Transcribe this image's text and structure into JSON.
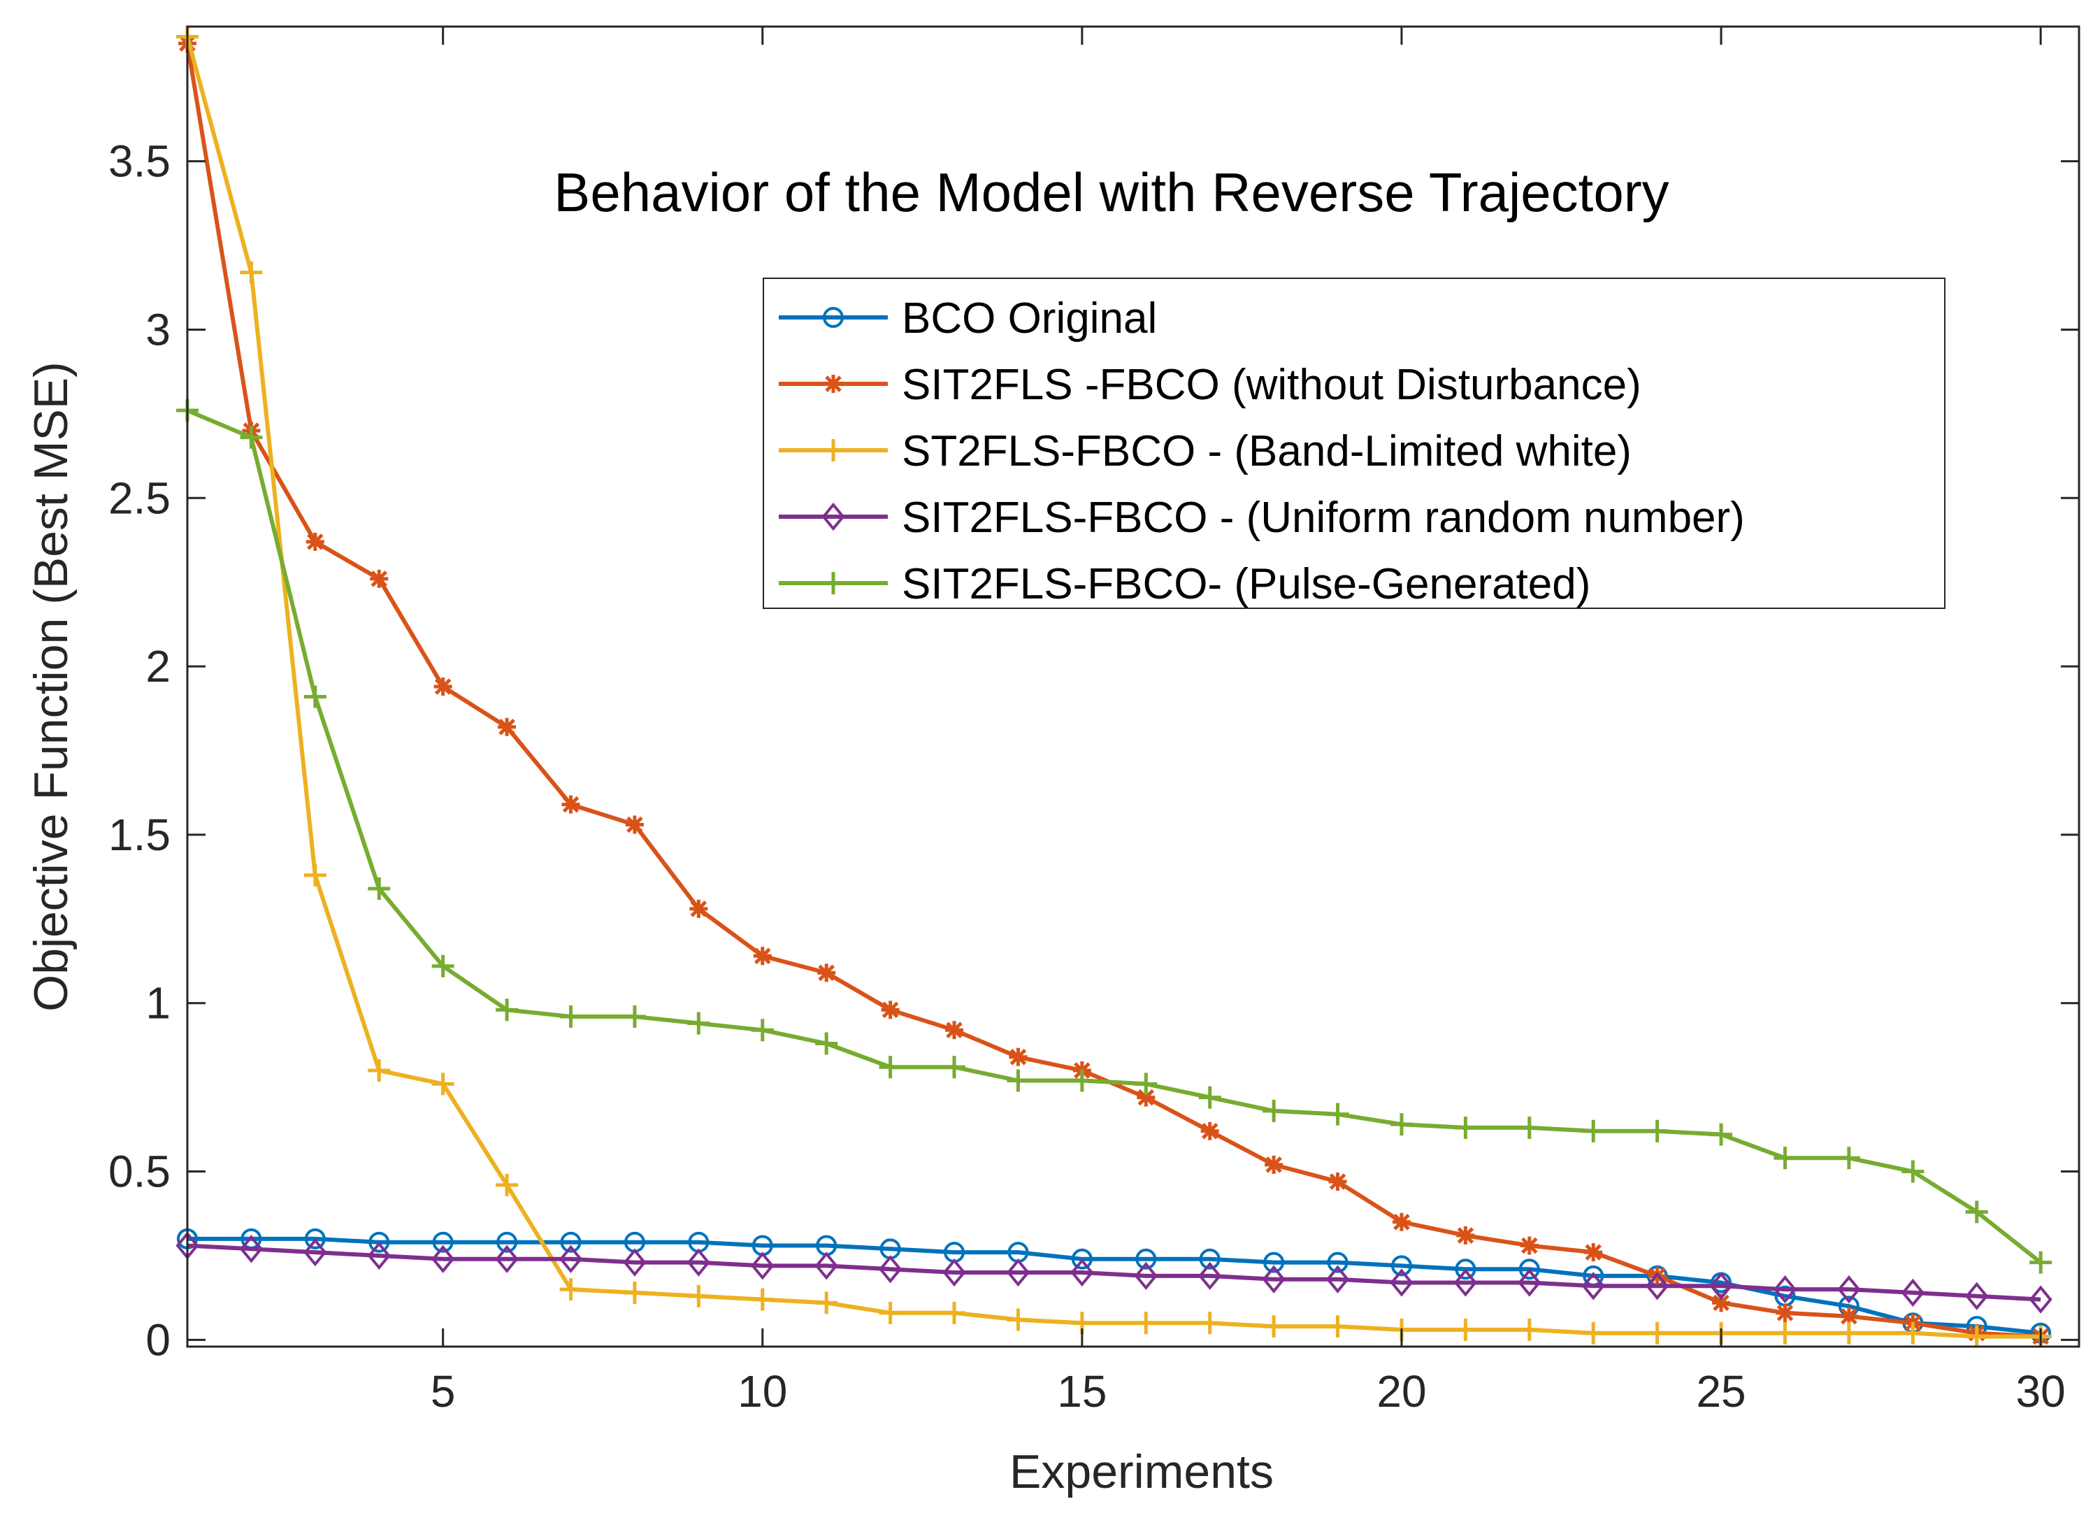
{
  "chart_data": {
    "type": "line",
    "title": "Behavior of the Model with Reverse Trajectory",
    "xlabel": "Experiments",
    "ylabel": "Objective Function (Best MSE)",
    "xlim": [
      1,
      30.6
    ],
    "ylim": [
      -0.02,
      3.9
    ],
    "xticks": [
      5,
      10,
      15,
      20,
      25,
      30
    ],
    "yticks": [
      0,
      0.5,
      1,
      1.5,
      2,
      2.5,
      3,
      3.5
    ],
    "ytick_labels": [
      "0",
      "0.5",
      "1",
      "1.5",
      "2",
      "2.5",
      "3",
      "3.5"
    ],
    "grid": false,
    "legend_position": "top-right",
    "x": [
      1,
      2,
      3,
      4,
      5,
      6,
      7,
      8,
      9,
      10,
      11,
      12,
      13,
      14,
      15,
      16,
      17,
      18,
      19,
      20,
      21,
      22,
      23,
      24,
      25,
      26,
      27,
      28,
      29,
      30
    ],
    "series": [
      {
        "name": "BCO Original",
        "color": "#0072BD",
        "marker": "circle",
        "values": [
          0.3,
          0.3,
          0.3,
          0.29,
          0.29,
          0.29,
          0.29,
          0.29,
          0.29,
          0.28,
          0.28,
          0.27,
          0.26,
          0.26,
          0.24,
          0.24,
          0.24,
          0.23,
          0.23,
          0.22,
          0.21,
          0.21,
          0.19,
          0.19,
          0.17,
          0.13,
          0.1,
          0.05,
          0.04,
          0.02
        ]
      },
      {
        "name": "SIT2FLS -FBCO (without Disturbance)",
        "color": "#D95319",
        "marker": "asterisk",
        "values": [
          3.85,
          2.7,
          2.37,
          2.26,
          1.94,
          1.82,
          1.59,
          1.53,
          1.28,
          1.14,
          1.09,
          0.98,
          0.92,
          0.84,
          0.8,
          0.72,
          0.62,
          0.52,
          0.47,
          0.35,
          0.31,
          0.28,
          0.26,
          0.19,
          0.11,
          0.08,
          0.07,
          0.05,
          0.02,
          0.01
        ]
      },
      {
        "name": "ST2FLS-FBCO - (Band-Limited white)",
        "color": "#EDB120",
        "marker": "plus",
        "values": [
          3.87,
          3.17,
          1.38,
          0.8,
          0.76,
          0.46,
          0.15,
          0.14,
          0.13,
          0.12,
          0.11,
          0.08,
          0.08,
          0.06,
          0.05,
          0.05,
          0.05,
          0.04,
          0.04,
          0.03,
          0.03,
          0.03,
          0.02,
          0.02,
          0.02,
          0.02,
          0.02,
          0.02,
          0.01,
          0.01
        ]
      },
      {
        "name": "SIT2FLS-FBCO - (Uniform random number)",
        "color": "#7E2F8E",
        "marker": "diamond",
        "values": [
          0.28,
          0.27,
          0.26,
          0.25,
          0.24,
          0.24,
          0.24,
          0.23,
          0.23,
          0.22,
          0.22,
          0.21,
          0.2,
          0.2,
          0.2,
          0.19,
          0.19,
          0.18,
          0.18,
          0.17,
          0.17,
          0.17,
          0.16,
          0.16,
          0.16,
          0.15,
          0.15,
          0.14,
          0.13,
          0.12
        ]
      },
      {
        "name": "SIT2FLS-FBCO- (Pulse-Generated)",
        "color": "#77AC30",
        "marker": "plus",
        "values": [
          2.76,
          2.68,
          1.91,
          1.34,
          1.11,
          0.98,
          0.96,
          0.96,
          0.94,
          0.92,
          0.88,
          0.81,
          0.81,
          0.77,
          0.77,
          0.76,
          0.72,
          0.68,
          0.67,
          0.64,
          0.63,
          0.63,
          0.62,
          0.62,
          0.61,
          0.54,
          0.54,
          0.5,
          0.38,
          0.23
        ]
      }
    ]
  }
}
